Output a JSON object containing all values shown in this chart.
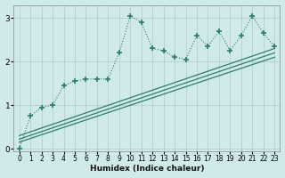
{
  "title": "",
  "xlabel": "Humidex (Indice chaleur)",
  "bg_color": "#d0eaea",
  "grid_color": "#b0c8c8",
  "line_color": "#2d7d6e",
  "xlim": [
    -0.5,
    23.5
  ],
  "ylim": [
    -0.05,
    3.3
  ],
  "xticks": [
    0,
    1,
    2,
    3,
    4,
    5,
    6,
    7,
    8,
    9,
    10,
    11,
    12,
    13,
    14,
    15,
    16,
    17,
    18,
    19,
    20,
    21,
    22,
    23
  ],
  "yticks": [
    0,
    1,
    2,
    3
  ],
  "main_x": [
    0,
    1,
    2,
    3,
    4,
    5,
    6,
    7,
    8,
    9,
    10,
    11,
    12,
    13,
    14,
    15,
    16,
    17,
    18,
    19,
    20,
    21,
    22,
    23
  ],
  "main_y": [
    0.0,
    0.75,
    0.95,
    1.0,
    1.45,
    1.55,
    1.6,
    1.6,
    1.6,
    2.2,
    3.05,
    2.9,
    2.3,
    2.25,
    2.1,
    2.05,
    2.6,
    2.35,
    2.7,
    2.25,
    2.6,
    3.05,
    2.65,
    2.35
  ],
  "trend1_x": [
    0,
    23
  ],
  "trend1_y": [
    0.15,
    2.1
  ],
  "trend2_x": [
    0,
    23
  ],
  "trend2_y": [
    0.22,
    2.2
  ],
  "trend3_x": [
    0,
    23
  ],
  "trend3_y": [
    0.3,
    2.3
  ]
}
